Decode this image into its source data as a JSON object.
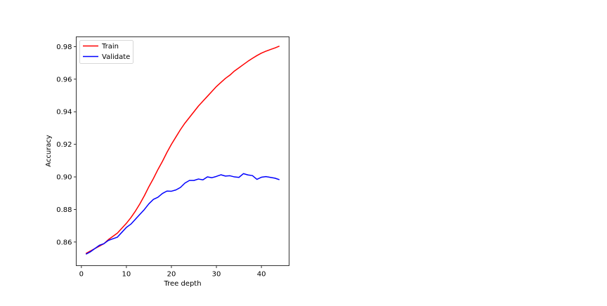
{
  "chart_data": {
    "type": "line",
    "title": "",
    "xlabel": "Tree depth",
    "ylabel": "Accuracy",
    "xlim": [
      -1.15,
      46.15
    ],
    "ylim": [
      0.8455,
      0.986
    ],
    "xticks": [
      0,
      10,
      20,
      30,
      40
    ],
    "yticks": [
      0.86,
      0.88,
      0.9,
      0.92,
      0.94,
      0.96,
      0.98
    ],
    "ytick_labels": [
      "0.86",
      "0.88",
      "0.90",
      "0.92",
      "0.94",
      "0.96",
      "0.98"
    ],
    "grid": false,
    "legend_position": "top-left",
    "series": [
      {
        "name": "Train",
        "color": "#ff0000",
        "x": [
          1,
          2,
          3,
          4,
          5,
          6,
          7,
          8,
          9,
          10,
          11,
          12,
          13,
          14,
          15,
          16,
          17,
          18,
          19,
          20,
          21,
          22,
          23,
          24,
          25,
          26,
          27,
          28,
          29,
          30,
          31,
          32,
          33,
          34,
          35,
          36,
          37,
          38,
          39,
          40,
          41,
          42,
          43,
          44
        ],
        "values": [
          0.853,
          0.8545,
          0.856,
          0.8575,
          0.859,
          0.8615,
          0.8635,
          0.8655,
          0.8685,
          0.8715,
          0.875,
          0.879,
          0.8835,
          0.8885,
          0.894,
          0.899,
          0.9045,
          0.9095,
          0.915,
          0.92,
          0.9245,
          0.929,
          0.933,
          0.9365,
          0.94,
          0.9435,
          0.9465,
          0.9495,
          0.9525,
          0.9555,
          0.958,
          0.9605,
          0.9625,
          0.965,
          0.967,
          0.969,
          0.971,
          0.9728,
          0.9745,
          0.976,
          0.9772,
          0.9782,
          0.9792,
          0.9803
        ]
      },
      {
        "name": "Validate",
        "color": "#0000ff",
        "x": [
          1,
          2,
          3,
          4,
          5,
          6,
          7,
          8,
          9,
          10,
          11,
          12,
          13,
          14,
          15,
          16,
          17,
          18,
          19,
          20,
          21,
          22,
          23,
          24,
          25,
          26,
          27,
          28,
          29,
          30,
          31,
          32,
          33,
          34,
          35,
          36,
          37,
          38,
          39,
          40,
          41,
          42,
          43,
          44
        ],
        "values": [
          0.8525,
          0.854,
          0.856,
          0.858,
          0.859,
          0.861,
          0.862,
          0.863,
          0.866,
          0.869,
          0.871,
          0.874,
          0.877,
          0.88,
          0.8835,
          0.8862,
          0.8875,
          0.8898,
          0.8913,
          0.8912,
          0.892,
          0.8935,
          0.8962,
          0.8978,
          0.8978,
          0.8987,
          0.8982,
          0.9,
          0.8995,
          0.9003,
          0.9013,
          0.9005,
          0.9007,
          0.9,
          0.8997,
          0.902,
          0.9012,
          0.9008,
          0.8985,
          0.8998,
          0.9002,
          0.8997,
          0.8992,
          0.8983
        ]
      }
    ]
  }
}
